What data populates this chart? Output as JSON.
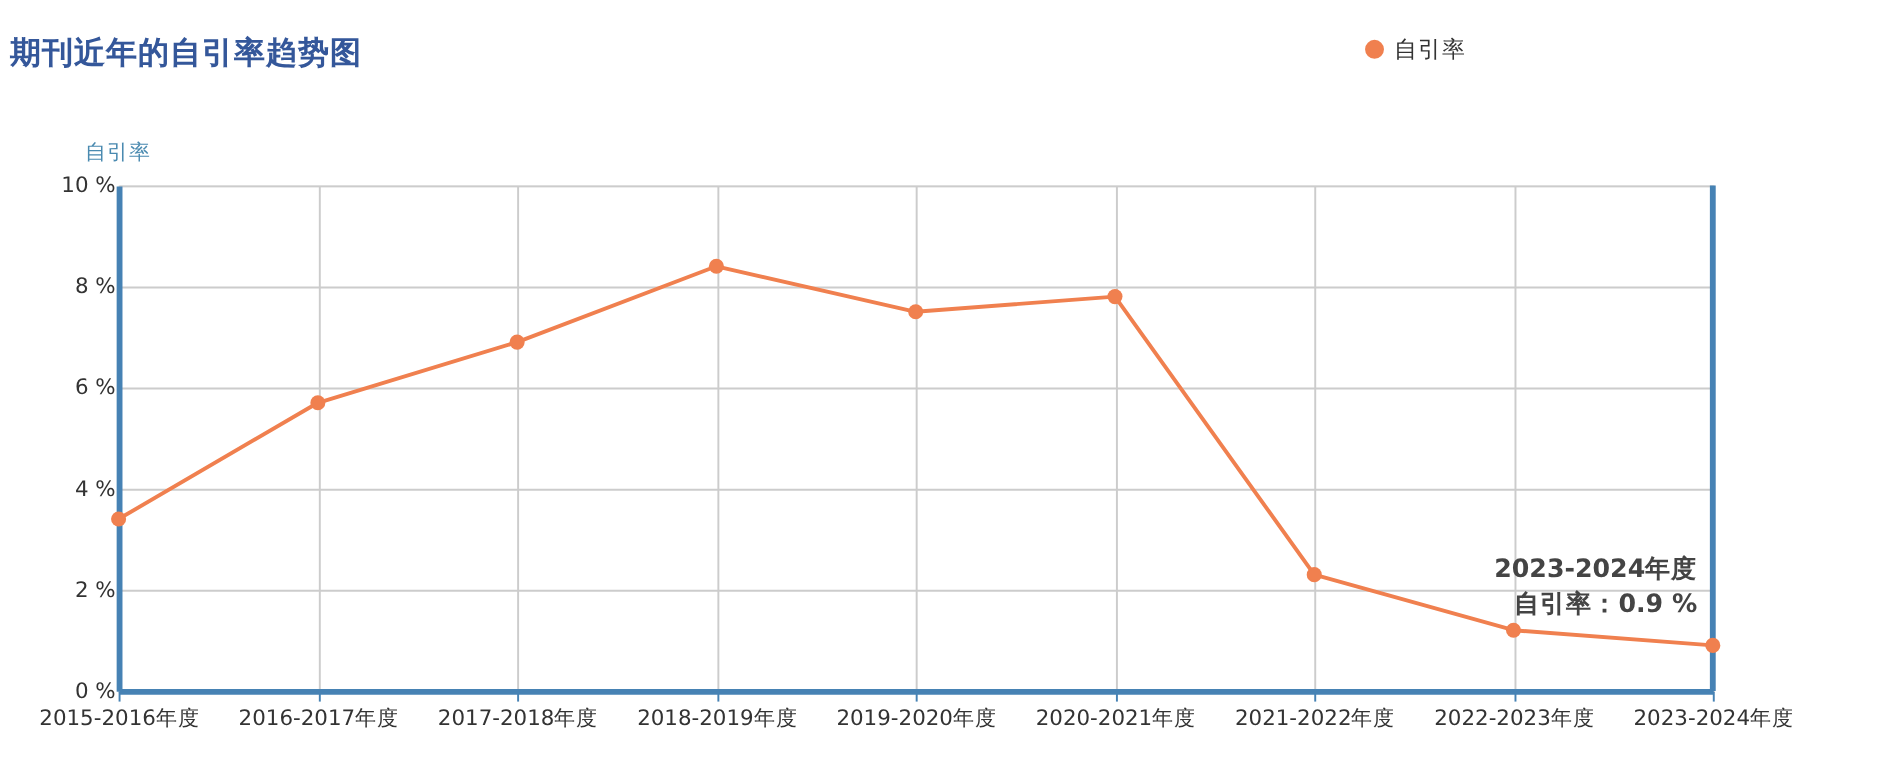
{
  "chart_data": {
    "type": "line",
    "title": "期刊近年的自引率趋势图",
    "ylabel": "自引率",
    "categories": [
      "2015-2016年度",
      "2016-2017年度",
      "2017-2018年度",
      "2018-2019年度",
      "2019-2020年度",
      "2020-2021年度",
      "2021-2022年度",
      "2022-2023年度",
      "2023-2024年度"
    ],
    "series": [
      {
        "name": "自引率",
        "color": "#f0804f",
        "values": [
          3.4,
          5.7,
          6.9,
          8.4,
          7.5,
          7.8,
          2.3,
          1.2,
          0.9
        ]
      }
    ],
    "ylim": [
      0,
      10
    ],
    "yticks": [
      {
        "value": 0,
        "label": "0 %"
      },
      {
        "value": 2,
        "label": "2 %"
      },
      {
        "value": 4,
        "label": "4 %"
      },
      {
        "value": 6,
        "label": "6 %"
      },
      {
        "value": 8,
        "label": "8 %"
      },
      {
        "value": 10,
        "label": "10 %"
      }
    ],
    "annotations": [
      {
        "text": "2023-2024年度",
        "x": "2023-2024年度",
        "y": 0.9
      },
      {
        "text": "自引率：0.9 %",
        "x": "2023-2024年度",
        "y": 0.9
      }
    ],
    "grid": true,
    "legend": "top right",
    "marker": "circle",
    "line_style": "solid"
  }
}
